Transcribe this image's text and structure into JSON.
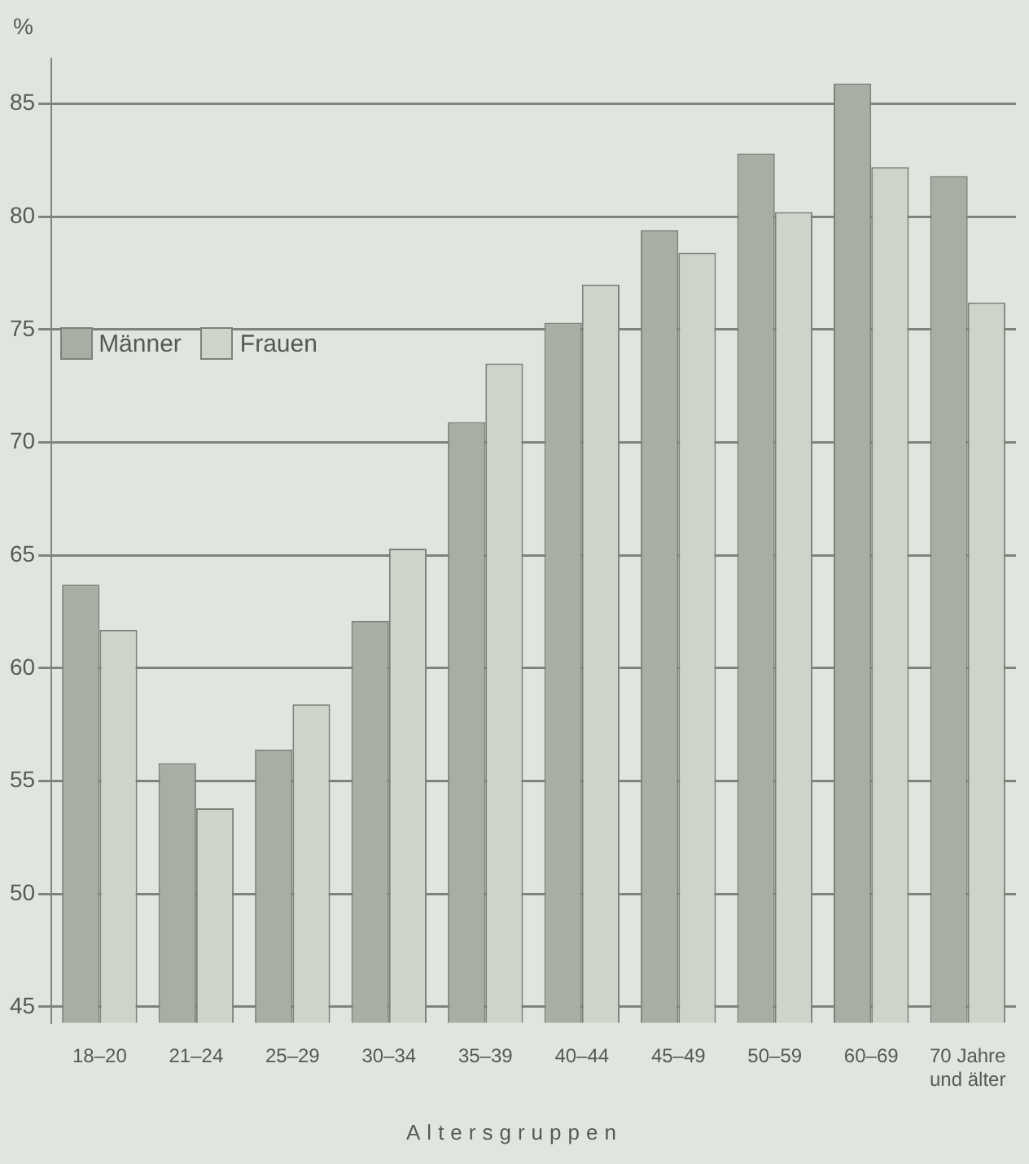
{
  "chart_data": {
    "type": "bar",
    "ylabel": "%",
    "xlabel": "Altersgruppen",
    "categories": [
      "18–20",
      "21–24",
      "25–29",
      "30–34",
      "35–39",
      "40–44",
      "45–49",
      "50–59",
      "60–69",
      "70 Jahre und älter"
    ],
    "series": [
      {
        "name": "Männer",
        "color": "#a7aea4",
        "values": [
          63.7,
          55.8,
          56.4,
          62.1,
          70.9,
          75.3,
          79.4,
          82.8,
          85.9,
          81.8
        ]
      },
      {
        "name": "Frauen",
        "color": "#cdd4ca",
        "values": [
          61.7,
          53.8,
          58.4,
          65.3,
          73.5,
          77.0,
          78.4,
          80.2,
          82.2,
          76.2
        ]
      }
    ],
    "ylim": [
      44.3,
      87
    ],
    "yticks": [
      45,
      50,
      55,
      60,
      65,
      70,
      75,
      80,
      85
    ],
    "grid": "y",
    "legend": "top left"
  }
}
